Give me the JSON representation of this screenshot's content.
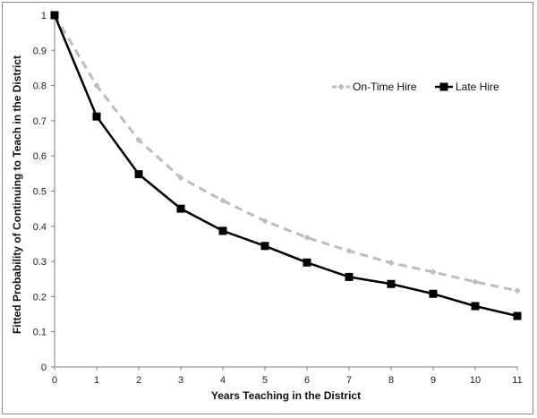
{
  "chart_data": {
    "type": "line",
    "xlabel": "Years Teaching in the District",
    "ylabel": "Fitted Probability of Continuing to Teach in the District",
    "x": [
      0,
      1,
      2,
      3,
      4,
      5,
      6,
      7,
      8,
      9,
      10,
      11
    ],
    "xlim": [
      0,
      11
    ],
    "ylim": [
      0,
      1
    ],
    "yticks": [
      "0",
      "0.1",
      "0.2",
      "0.3",
      "0.4",
      "0.5",
      "0.6",
      "0.7",
      "0.8",
      "0.9",
      "1"
    ],
    "xticks": [
      "0",
      "1",
      "2",
      "3",
      "4",
      "5",
      "6",
      "7",
      "8",
      "9",
      "10",
      "11"
    ],
    "grid": false,
    "legend_position": "top-right",
    "series": [
      {
        "name": "On-Time Hire",
        "color": "#bdbdbd",
        "style": "dashed",
        "marker": "diamond",
        "values": [
          1.0,
          0.8,
          0.645,
          0.538,
          0.473,
          0.415,
          0.368,
          0.33,
          0.296,
          0.27,
          0.242,
          0.217
        ]
      },
      {
        "name": "Late Hire",
        "color": "#000000",
        "style": "solid",
        "marker": "square",
        "values": [
          1.0,
          0.712,
          0.548,
          0.45,
          0.387,
          0.344,
          0.297,
          0.256,
          0.236,
          0.208,
          0.173,
          0.145
        ]
      }
    ]
  }
}
